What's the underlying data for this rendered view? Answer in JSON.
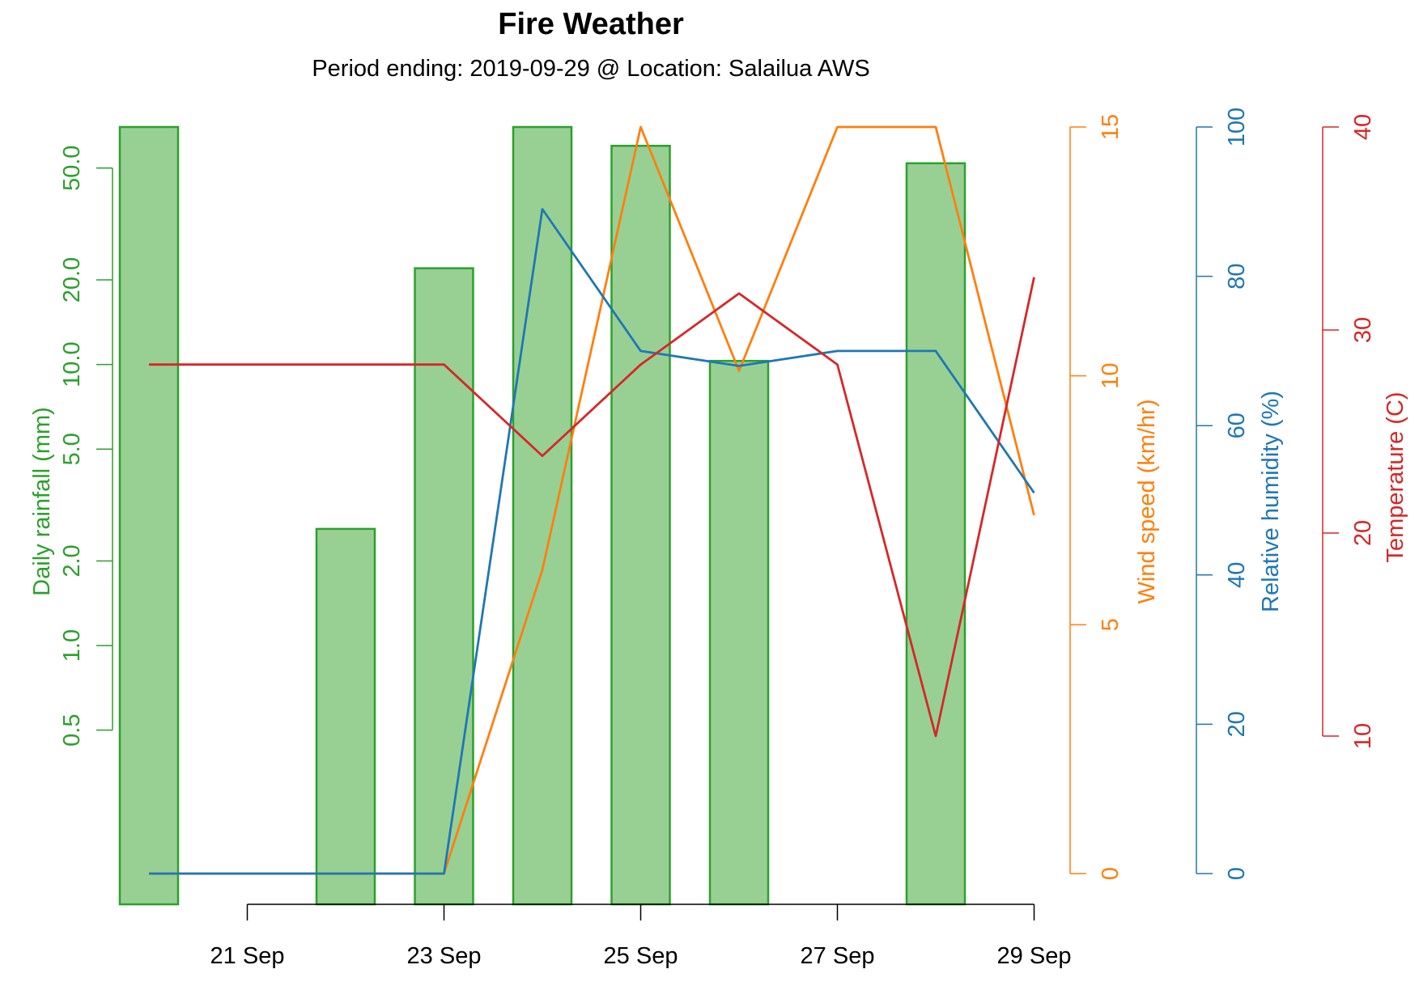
{
  "chart_data": {
    "type": "bar+line",
    "title": "Fire Weather",
    "subtitle": "Period ending: 2019-09-29 @ Location: Salailua AWS",
    "x": [
      "2019-09-20",
      "2019-09-21",
      "2019-09-22",
      "2019-09-23",
      "2019-09-24",
      "2019-09-25",
      "2019-09-26",
      "2019-09-27",
      "2019-09-28",
      "2019-09-29"
    ],
    "x_axis": {
      "tick_labels": [
        "21 Sep",
        "23 Sep",
        "25 Sep",
        "27 Sep",
        "29 Sep"
      ],
      "tick_dates": [
        "2019-09-21",
        "2019-09-23",
        "2019-09-25",
        "2019-09-27",
        "2019-09-29"
      ]
    },
    "colors": {
      "rainfall": "#2ca02c",
      "rainfall_fill": "#98d094",
      "wind": "#ff7f0e",
      "humidity": "#1f77b4",
      "temperature": "#d62728"
    },
    "axes": {
      "rainfall": {
        "label": "Daily rainfall (mm)",
        "scale": "log",
        "ticks": [
          "0.5",
          "1.0",
          "2.0",
          "5.0",
          "10.0",
          "20.0",
          "50.0"
        ],
        "range": [
          0.12,
          70
        ]
      },
      "wind": {
        "label": "Wind speed (km/hr)",
        "ticks": [
          "0",
          "5",
          "10",
          "15"
        ],
        "range": [
          0,
          15
        ]
      },
      "humidity": {
        "label": "Relative humidity (%)",
        "ticks": [
          "0",
          "20",
          "40",
          "60",
          "80",
          "100"
        ],
        "range": [
          0,
          100
        ]
      },
      "temperature": {
        "label": "Temperature (C)",
        "ticks": [
          "10",
          "20",
          "30",
          "40"
        ],
        "range": [
          10,
          40
        ]
      }
    },
    "series": [
      {
        "name": "Daily rainfall (mm)",
        "type": "bar",
        "axis": "rainfall",
        "values": [
          70,
          null,
          2.6,
          22,
          70,
          60,
          10.3,
          null,
          52,
          null
        ]
      },
      {
        "name": "Wind speed (km/hr)",
        "type": "line",
        "axis": "wind",
        "values": [
          0,
          0,
          0,
          0,
          6.1,
          15,
          10.1,
          15,
          15,
          7.2
        ]
      },
      {
        "name": "Relative humidity (%)",
        "type": "line",
        "axis": "humidity",
        "values": [
          0,
          0,
          0,
          0,
          89,
          70,
          68,
          70,
          70,
          51
        ]
      },
      {
        "name": "Temperature (C)",
        "type": "line",
        "axis": "temperature",
        "values": [
          28.3,
          28.3,
          28.3,
          28.3,
          23.8,
          28.3,
          31.8,
          28.3,
          10,
          32.6
        ]
      }
    ]
  }
}
